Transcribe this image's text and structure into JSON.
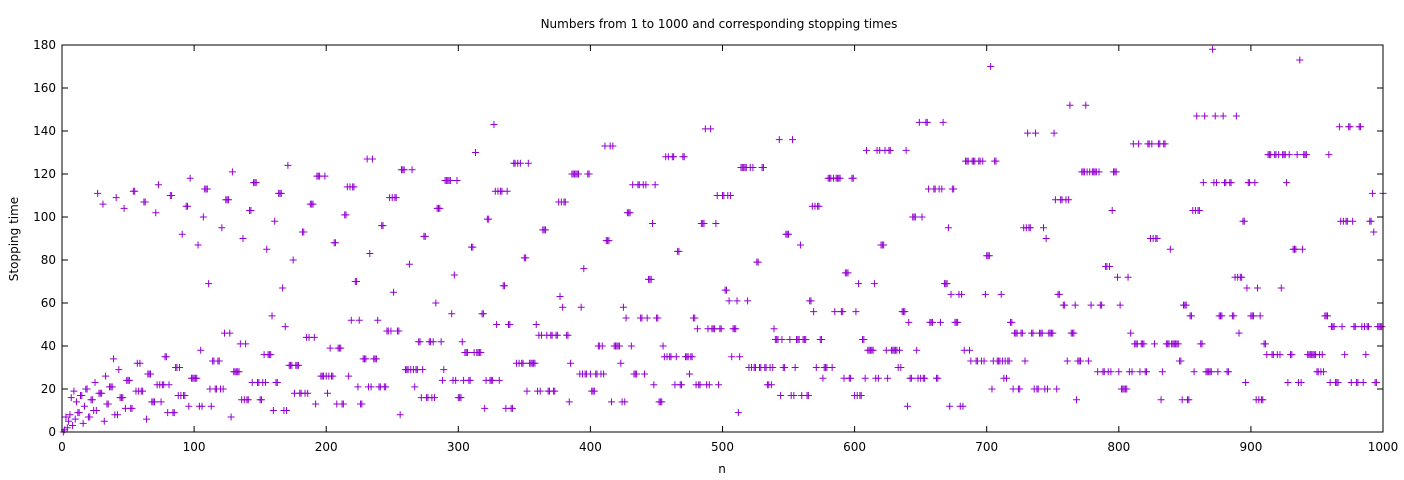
{
  "chart_data": {
    "type": "scatter",
    "title": "Numbers from 1 to 1000 and corresponding stopping times",
    "xlabel": "n",
    "ylabel": "Stopping time",
    "xlim": [
      0,
      1000
    ],
    "ylim": [
      0,
      180
    ],
    "xticks": [
      0,
      100,
      200,
      300,
      400,
      500,
      600,
      700,
      800,
      900,
      1000
    ],
    "yticks": [
      0,
      20,
      40,
      60,
      80,
      100,
      120,
      140,
      160,
      180
    ],
    "grid": false,
    "legend": "none",
    "marker": "+",
    "series_color": "#9400d3",
    "n_min": 1,
    "n_max": 1000
  }
}
